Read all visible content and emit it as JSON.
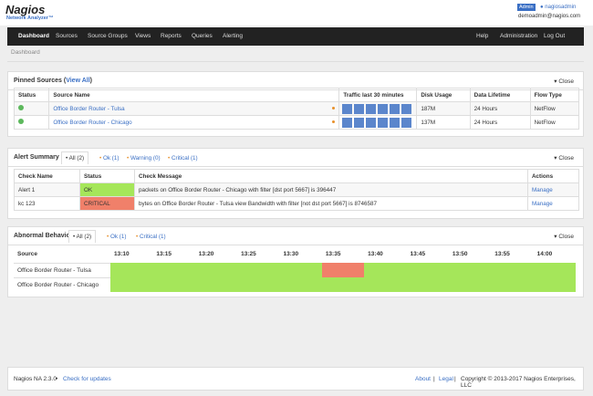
{
  "header": {
    "logo": "Nagios",
    "logo_sub": "Network Analyzer",
    "logo_tm": "™",
    "badge": "Admin",
    "user": "nagiosadmin",
    "email": "demoadmin@nagios.com"
  },
  "nav": {
    "left": [
      "Dashboard",
      "Sources",
      "Source Groups",
      "Views",
      "Reports",
      "Queries",
      "Alerting"
    ],
    "right": [
      "Help",
      "Administration",
      "Log Out"
    ]
  },
  "breadcrumb": "Dashboard",
  "close": "Close",
  "pinned": {
    "title": "Pinned Sources (",
    "link": "View All",
    "title_end": ")",
    "columns": [
      "Status",
      "Source Name",
      "Traffic last 30 minutes",
      "Disk Usage",
      "Data Lifetime",
      "Flow Type"
    ],
    "rows": [
      [
        "Office Border Router - Tulsa",
        "187M",
        "24 Hours",
        "NetFlow"
      ],
      [
        "Office Border Router - Chicago",
        "137M",
        "24 Hours",
        "NetFlow"
      ]
    ]
  },
  "alerts": {
    "title": "Alert Summary",
    "tabs": [
      "All (2)",
      "Ok (1)",
      "Warning (0)",
      "Critical (1)"
    ],
    "columns": [
      "Check Name",
      "Status",
      "Check Message",
      "Actions"
    ],
    "rows": [
      [
        "Alert 1",
        "OK",
        "packets on Office Border Router - Chicago with filter [dst port 5667] is 396447",
        "Manage"
      ],
      [
        "kc 123",
        "CRITICAL",
        "bytes on Office Border Router - Tulsa view Bandwidth with filter [not dst port 5667] is 8746587",
        "Manage"
      ]
    ]
  },
  "abnormal": {
    "title": "Abnormal Behavior",
    "tabs": [
      "All (2)",
      "Ok (1)",
      "Critical (1)"
    ],
    "source_header": "Source",
    "times": [
      "13:10",
      "13:15",
      "13:20",
      "13:25",
      "13:30",
      "13:35",
      "13:40",
      "13:45",
      "13:50",
      "13:55",
      "14:00"
    ],
    "colors": {
      "ok": "#a5e65a",
      "critical": "#f0806a"
    },
    "rows": [
      {
        "name": "Office Border Router - Tulsa",
        "statuses": [
          "ok",
          "ok",
          "ok",
          "ok",
          "ok",
          "critical",
          "ok",
          "ok",
          "ok",
          "ok",
          "ok"
        ]
      },
      {
        "name": "Office Border Router - Chicago",
        "statuses": [
          "ok",
          "ok",
          "ok",
          "ok",
          "ok",
          "ok",
          "ok",
          "ok",
          "ok",
          "ok",
          "ok"
        ]
      }
    ]
  },
  "footer": {
    "version": "Nagios NA 2.3.0",
    "dot": "•",
    "updates": "Check for updates",
    "about": "About",
    "sep": "|",
    "legal": "Legal",
    "copyright": "Copyright © 2013-2017 Nagios Enterprises, LLC"
  }
}
